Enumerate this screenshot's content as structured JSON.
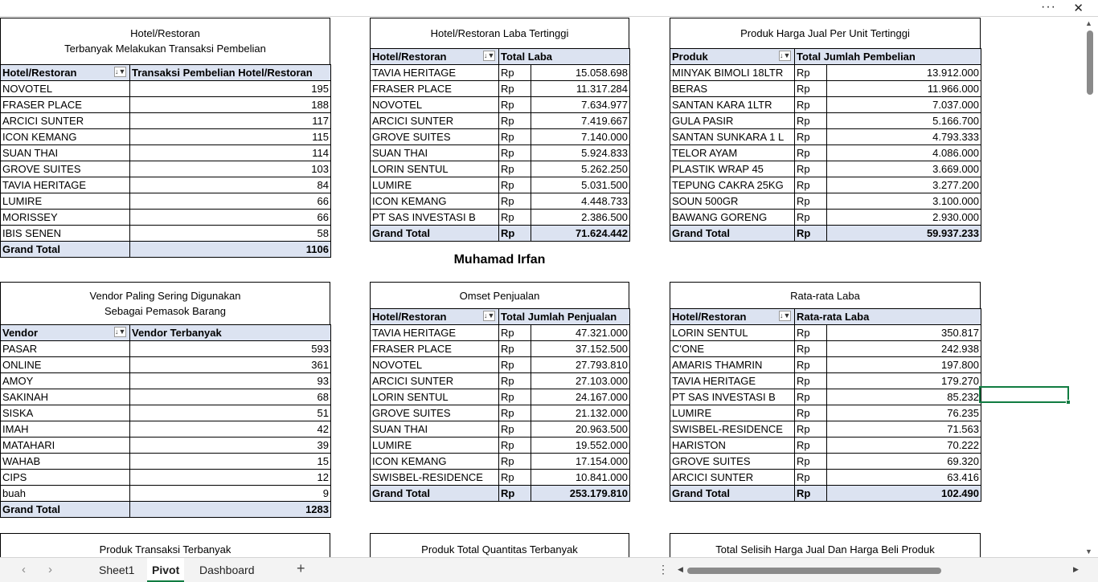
{
  "window": {
    "more_icon": "more-horizontal-icon",
    "close_icon": "close-icon",
    "more_glyph": "···",
    "close_glyph": "✕"
  },
  "author": "Muhamad Irfan",
  "pivots": {
    "hotel_trans": {
      "title1": "Hotel/Restoran",
      "title2": "Terbanyak Melakukan Transaksi Pembelian",
      "col1": "Hotel/Restoran",
      "col2": "Transaksi Pembelian Hotel/Restoran",
      "rows": [
        [
          "NOVOTEL",
          "195"
        ],
        [
          "FRASER PLACE",
          "188"
        ],
        [
          "ARCICI SUNTER",
          "117"
        ],
        [
          "ICON KEMANG",
          "115"
        ],
        [
          "SUAN THAI",
          "114"
        ],
        [
          "GROVE SUITES",
          "103"
        ],
        [
          "TAVIA HERITAGE",
          "84"
        ],
        [
          "LUMIRE",
          "66"
        ],
        [
          "MORISSEY",
          "66"
        ],
        [
          "IBIS SENEN",
          "58"
        ]
      ],
      "total_label": "Grand Total",
      "total_value": "1106"
    },
    "laba_tertinggi": {
      "title1": "Hotel/Restoran Laba Tertinggi",
      "col1": "Hotel/Restoran",
      "col2": "Total Laba",
      "rows": [
        [
          "TAVIA HERITAGE",
          "Rp",
          "15.058.698"
        ],
        [
          "FRASER PLACE",
          "Rp",
          "11.317.284"
        ],
        [
          "NOVOTEL",
          "Rp",
          "7.634.977"
        ],
        [
          "ARCICI SUNTER",
          "Rp",
          "7.419.667"
        ],
        [
          "GROVE SUITES",
          "Rp",
          "7.140.000"
        ],
        [
          "SUAN THAI",
          "Rp",
          "5.924.833"
        ],
        [
          "LORIN SENTUL",
          "Rp",
          "5.262.250"
        ],
        [
          "LUMIRE",
          "Rp",
          "5.031.500"
        ],
        [
          "ICON KEMANG",
          "Rp",
          "4.448.733"
        ],
        [
          "PT SAS INVESTASI B",
          "Rp",
          "2.386.500"
        ]
      ],
      "total_label": "Grand Total",
      "total_rp": "Rp",
      "total_value": "71.624.442"
    },
    "harga_jual": {
      "title1": "Produk Harga Jual Per Unit Tertinggi",
      "col1": "Produk",
      "col2": "Total Jumlah Pembelian",
      "rows": [
        [
          "MINYAK BIMOLI 18LTR",
          "Rp",
          "13.912.000"
        ],
        [
          "BERAS",
          "Rp",
          "11.966.000"
        ],
        [
          "SANTAN KARA 1LTR",
          "Rp",
          "7.037.000"
        ],
        [
          "GULA PASIR",
          "Rp",
          "5.166.700"
        ],
        [
          "SANTAN SUNKARA 1 L",
          "Rp",
          "4.793.333"
        ],
        [
          "TELOR AYAM",
          "Rp",
          "4.086.000"
        ],
        [
          "PLASTIK WRAP 45",
          "Rp",
          "3.669.000"
        ],
        [
          "TEPUNG CAKRA 25KG",
          "Rp",
          "3.277.200"
        ],
        [
          "SOUN 500GR",
          "Rp",
          "3.100.000"
        ],
        [
          "BAWANG GORENG",
          "Rp",
          "2.930.000"
        ]
      ],
      "total_label": "Grand Total",
      "total_rp": "Rp",
      "total_value": "59.937.233"
    },
    "vendor": {
      "title1": "Vendor Paling Sering Digunakan",
      "title2": "Sebagai Pemasok Barang",
      "col1": "Vendor",
      "col2": "Vendor Terbanyak",
      "rows": [
        [
          "PASAR",
          "593"
        ],
        [
          "ONLINE",
          "361"
        ],
        [
          "AMOY",
          "93"
        ],
        [
          "SAKINAH",
          "68"
        ],
        [
          "SISKA",
          "51"
        ],
        [
          "IMAH",
          "42"
        ],
        [
          "MATAHARI",
          "39"
        ],
        [
          "WAHAB",
          "15"
        ],
        [
          "CIPS",
          "12"
        ],
        [
          "buah",
          "9"
        ]
      ],
      "total_label": "Grand Total",
      "total_value": "1283"
    },
    "omset": {
      "title1": "Omset Penjualan",
      "col1": "Hotel/Restoran",
      "col2": "Total Jumlah Penjualan",
      "rows": [
        [
          "TAVIA HERITAGE",
          "Rp",
          "47.321.000"
        ],
        [
          "FRASER PLACE",
          "Rp",
          "37.152.500"
        ],
        [
          "NOVOTEL",
          "Rp",
          "27.793.810"
        ],
        [
          "ARCICI SUNTER",
          "Rp",
          "27.103.000"
        ],
        [
          "LORIN SENTUL",
          "Rp",
          "24.167.000"
        ],
        [
          "GROVE SUITES",
          "Rp",
          "21.132.000"
        ],
        [
          "SUAN THAI",
          "Rp",
          "20.963.500"
        ],
        [
          "LUMIRE",
          "Rp",
          "19.552.000"
        ],
        [
          "ICON KEMANG",
          "Rp",
          "17.154.000"
        ],
        [
          "SWISBEL-RESIDENCE",
          "Rp",
          "10.841.000"
        ]
      ],
      "total_label": "Grand Total",
      "total_rp": "Rp",
      "total_value": "253.179.810"
    },
    "rata_laba": {
      "title1": "Rata-rata Laba",
      "col1": "Hotel/Restoran",
      "col2": "Rata-rata Laba",
      "rows": [
        [
          "LORIN SENTUL",
          "Rp",
          "350.817"
        ],
        [
          "C'ONE",
          "Rp",
          "242.938"
        ],
        [
          "AMARIS THAMRIN",
          "Rp",
          "197.800"
        ],
        [
          "TAVIA HERITAGE",
          "Rp",
          "179.270"
        ],
        [
          "PT SAS INVESTASI B",
          "Rp",
          "85.232"
        ],
        [
          "LUMIRE",
          "Rp",
          "76.235"
        ],
        [
          "SWISBEL-RESIDENCE",
          "Rp",
          "71.563"
        ],
        [
          "HARISTON",
          "Rp",
          "70.222"
        ],
        [
          "GROVE SUITES",
          "Rp",
          "69.320"
        ],
        [
          "ARCICI SUNTER",
          "Rp",
          "63.416"
        ]
      ],
      "total_label": "Grand Total",
      "total_rp": "Rp",
      "total_value": "102.490"
    },
    "bottom_titles": {
      "a": "Produk Transaksi Terbanyak",
      "b": "Produk Total Quantitas Terbanyak",
      "c": "Total Selisih Harga Jual Dan Harga Beli Produk"
    }
  },
  "filter_glyph": "↓▼",
  "tabs": {
    "sheet1": "Sheet1",
    "pivot": "Pivot",
    "dashboard": "Dashboard",
    "add": "+"
  },
  "nav": {
    "prev": "‹",
    "next": "›",
    "kebab": "⋮",
    "hleft": "◀",
    "hright": "▶",
    "up": "▲",
    "down": "▼"
  }
}
